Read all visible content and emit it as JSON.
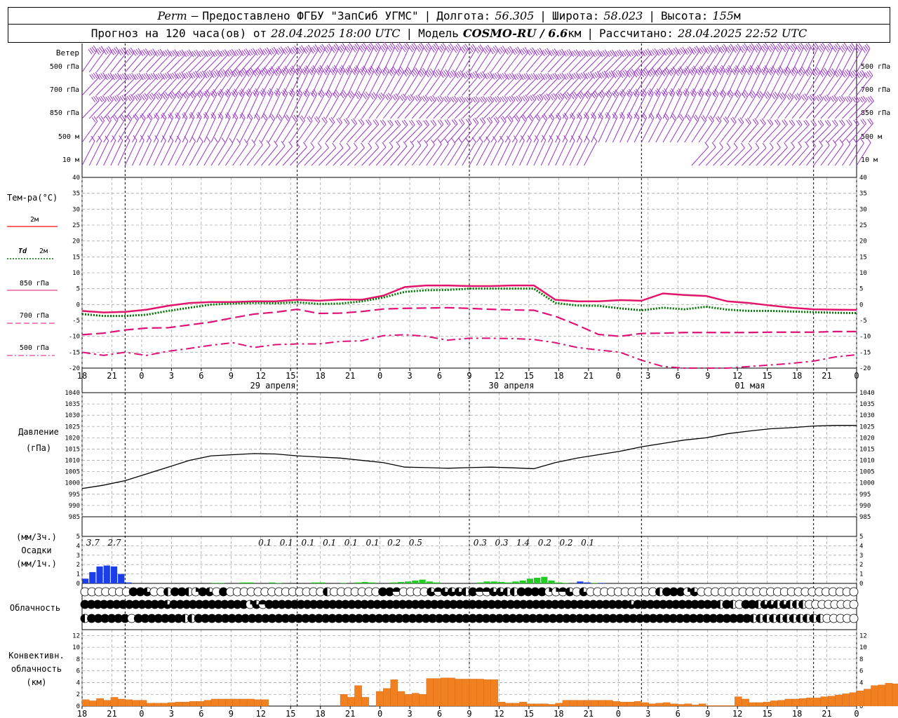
{
  "header": {
    "line1": {
      "station": "Perm",
      "provider": "Предоставлено ФГБУ \"ЗапСиб УГМС\"",
      "lon_label": "Долгота:",
      "lon": "56.305",
      "lat_label": "Широта:",
      "lat": "58.023",
      "alt_label": "Высота:",
      "alt": "155",
      "alt_unit": "м"
    },
    "line2": {
      "forecast_label": "Прогноз на 120 часа(ов) от",
      "forecast_from": "28.04.2025 18:00 UTC",
      "model_label": "Модель",
      "model": "COSMO-RU / 6.6",
      "model_unit": "км",
      "calc_label": "Рассчитано:",
      "calc": "28.04.2025 22:52 UTC"
    }
  },
  "time_axis": {
    "hour_labels": [
      "18",
      "21",
      "0",
      "3",
      "6",
      "9",
      "12",
      "15",
      "18",
      "21",
      "0",
      "3",
      "6",
      "9",
      "12",
      "15",
      "18",
      "21",
      "0",
      "3",
      "6",
      "9",
      "12",
      "15",
      "18",
      "21",
      "0"
    ],
    "day_labels": [
      "29 апреля",
      "30 апреля",
      "01 мая"
    ],
    "day_label_hours": [
      18,
      42,
      66
    ]
  },
  "colors": {
    "wind": "#9933cc",
    "t2m": "#ff3333",
    "td2m": "#007700",
    "t850": "#dd1177",
    "t700": "#dd1177",
    "t500": "#dd1177",
    "pressure": "#000000",
    "precip_rain": "#1a3ee8",
    "precip_light": "#22cc22",
    "convective": "#f08020",
    "grid": "#aaaaaa"
  },
  "wind_panel": {
    "title": "Ветер",
    "levels": [
      "500 гПа",
      "700 гПа",
      "850 гПа",
      "500  м",
      "10  м"
    ]
  },
  "temp_legend": {
    "title": "Тем-ра(°C)",
    "items": [
      {
        "label": "2м",
        "style": "solid"
      },
      {
        "label_td": "Td",
        "label": "2м",
        "style": "dotted"
      },
      {
        "label": "850 гПа",
        "style": "solid-thin"
      },
      {
        "label": "700 гПа",
        "style": "dashed"
      },
      {
        "label": "500 гПа",
        "style": "dashdot"
      }
    ]
  },
  "pressure_panel": {
    "title1": "Давление",
    "title2": "(гПа)"
  },
  "precip_panel": {
    "title1": "(мм/3ч.)",
    "title2": "Осадки",
    "title3": "(мм/1ч.)"
  },
  "cloud_panel": {
    "title": "Облачность"
  },
  "conv_panel": {
    "title1": "Конвективн.",
    "title2": "облачность",
    "title3": "(км)"
  },
  "chart_data": [
    {
      "type": "line",
      "name": "temperature",
      "ylim": [
        -20,
        40
      ],
      "y_ticks": [
        -20,
        -15,
        -10,
        -5,
        0,
        5,
        10,
        15,
        20,
        25,
        30,
        35,
        40
      ],
      "x_hours": [
        0,
        3,
        6,
        9,
        12,
        15,
        18,
        21,
        24,
        27,
        30,
        33,
        36,
        39,
        42,
        45,
        48,
        51,
        54,
        57,
        60,
        63,
        66,
        69,
        72,
        75,
        78,
        81,
        84,
        87,
        90,
        93,
        96,
        99,
        102,
        105,
        108
      ],
      "series": [
        {
          "key": "t2m",
          "values": [
            -2,
            -2.5,
            -2.3,
            -1.6,
            -0.4,
            0.5,
            0.8,
            0.8,
            1,
            1,
            1.5,
            1.2,
            1.6,
            1.5,
            2.8,
            5.5,
            6,
            6,
            5.8,
            5.8,
            6,
            6,
            1.5,
            1,
            1,
            1.4,
            1.2,
            3.5,
            3,
            2.7,
            1,
            0.5,
            -0.3,
            -1,
            -1.5,
            -1.6,
            -1.7
          ]
        },
        {
          "key": "td2m",
          "values": [
            -3,
            -3.6,
            -3.6,
            -3.2,
            -2,
            -1,
            0,
            0.3,
            0.5,
            0.4,
            0.7,
            0.2,
            0.3,
            1,
            2.2,
            4,
            4.5,
            4.6,
            5,
            5,
            5,
            5,
            0.5,
            -0.3,
            -0.4,
            -1.2,
            -1.8,
            -1,
            -1.5,
            -0.7,
            -1.6,
            -2,
            -2,
            -2.2,
            -2.4,
            -2.6,
            -2.7
          ]
        },
        {
          "key": "t850",
          "values": [
            -2,
            -2.5,
            -2.3,
            -1.6,
            -0.4,
            0.5,
            0.8,
            0.8,
            1,
            1,
            1.5,
            1.2,
            1.6,
            1.5,
            2.8,
            5.5,
            6,
            6,
            5.8,
            5.8,
            6,
            6,
            1.5,
            1,
            1,
            1.4,
            1.2,
            3.5,
            3,
            2.7,
            1,
            0.5,
            -0.3,
            -1,
            -1.5,
            -1.6,
            -1.7
          ]
        },
        {
          "key": "t700",
          "values": [
            -9.5,
            -9,
            -8,
            -7.4,
            -7.3,
            -6.4,
            -5.5,
            -4.2,
            -3,
            -2.4,
            -1.5,
            -2.8,
            -2.7,
            -2.2,
            -1.4,
            -1.2,
            -1.1,
            -1,
            -1.2,
            -1.5,
            -1.7,
            -1.8,
            -3.7,
            -6.4,
            -9.4,
            -10,
            -9.1,
            -9,
            -8.8,
            -8.8,
            -8.8,
            -8.8,
            -8.7,
            -8.7,
            -8.7,
            -8.5,
            -8.5
          ]
        },
        {
          "key": "t500",
          "values": [
            -15,
            -16,
            -15,
            -16,
            -14.7,
            -13.8,
            -12.8,
            -12,
            -13.5,
            -12.6,
            -12.4,
            -12.4,
            -11.6,
            -11.4,
            -9.8,
            -9.5,
            -10,
            -11.2,
            -10.6,
            -10.6,
            -10.7,
            -11,
            -12,
            -13.5,
            -14.3,
            -15,
            -17.5,
            -19.5,
            -20,
            -20,
            -20,
            -19.5,
            -19,
            -18.5,
            -17.8,
            -16.5,
            -15.8
          ]
        }
      ]
    },
    {
      "type": "line",
      "name": "pressure",
      "ylim": [
        985,
        1040
      ],
      "y_ticks": [
        985,
        990,
        995,
        1000,
        1005,
        1010,
        1015,
        1020,
        1025,
        1030,
        1035,
        1040
      ],
      "x_hours": [
        0,
        3,
        6,
        9,
        12,
        15,
        18,
        21,
        24,
        27,
        30,
        33,
        36,
        39,
        42,
        45,
        48,
        51,
        54,
        57,
        60,
        63,
        66,
        69,
        72,
        75,
        78,
        81,
        84,
        87,
        90,
        93,
        96,
        99,
        102,
        105,
        108
      ],
      "values": [
        997.5,
        999,
        1001,
        1004,
        1007,
        1010,
        1012,
        1012.5,
        1013,
        1012.8,
        1012,
        1011.5,
        1011,
        1010,
        1009,
        1007,
        1006.8,
        1006.5,
        1006.8,
        1007,
        1006.7,
        1006.3,
        1009,
        1011,
        1012.5,
        1014,
        1016,
        1017.5,
        1019,
        1020,
        1021.8,
        1023,
        1024,
        1024.5,
        1025.2,
        1025.5,
        1025.5
      ]
    },
    {
      "type": "bar",
      "name": "precipitation",
      "ylim": [
        0,
        5
      ],
      "y_ticks": [
        0,
        1,
        2,
        3,
        4,
        5
      ],
      "totals_3h": [
        {
          "label": "3.7",
          "hour": 1.5
        },
        {
          "label": "2.7",
          "hour": 4.5
        },
        {
          "label": "0.1",
          "hour": 25.5
        },
        {
          "label": "0.1",
          "hour": 28.5
        },
        {
          "label": "0.1",
          "hour": 31.5
        },
        {
          "label": "0.1",
          "hour": 34.5
        },
        {
          "label": "0.1",
          "hour": 37.5
        },
        {
          "label": "0.1",
          "hour": 40.5
        },
        {
          "label": "0.2",
          "hour": 43.5
        },
        {
          "label": "0.5",
          "hour": 46.5
        },
        {
          "label": "0.3",
          "hour": 55.5
        },
        {
          "label": "0.3",
          "hour": 58.5
        },
        {
          "label": "1.4",
          "hour": 61.5
        },
        {
          "label": "0.2",
          "hour": 64.5
        },
        {
          "label": "0.2",
          "hour": 67.5
        },
        {
          "label": "0.1",
          "hour": 70.5
        }
      ],
      "hourly_rain": [
        0.5,
        1.2,
        1.8,
        1.9,
        1.8,
        1,
        0.1
      ],
      "hourly_light": [
        {
          "hour": 18,
          "v": 0.05
        },
        {
          "hour": 19,
          "v": 0.05
        },
        {
          "hour": 22,
          "v": 0.1
        },
        {
          "hour": 23,
          "v": 0.1
        },
        {
          "hour": 26,
          "v": 0.1
        },
        {
          "hour": 27,
          "v": 0.05
        },
        {
          "hour": 32,
          "v": 0.1
        },
        {
          "hour": 33,
          "v": 0.1
        },
        {
          "hour": 36,
          "v": 0.05
        },
        {
          "hour": 38,
          "v": 0.1
        },
        {
          "hour": 39,
          "v": 0.15
        },
        {
          "hour": 40,
          "v": 0.1
        },
        {
          "hour": 43,
          "v": 0.1
        },
        {
          "hour": 44,
          "v": 0.15
        },
        {
          "hour": 45,
          "v": 0.2
        },
        {
          "hour": 46,
          "v": 0.3
        },
        {
          "hour": 47,
          "v": 0.4
        },
        {
          "hour": 48,
          "v": 0.2
        },
        {
          "hour": 49,
          "v": 0.1
        },
        {
          "hour": 55,
          "v": 0.1
        },
        {
          "hour": 56,
          "v": 0.2
        },
        {
          "hour": 57,
          "v": 0.2
        },
        {
          "hour": 58,
          "v": 0.15
        },
        {
          "hour": 59,
          "v": 0.1
        },
        {
          "hour": 60,
          "v": 0.2
        },
        {
          "hour": 61,
          "v": 0.3
        },
        {
          "hour": 62,
          "v": 0.5
        },
        {
          "hour": 63,
          "v": 0.6
        },
        {
          "hour": 64,
          "v": 0.7
        },
        {
          "hour": 65,
          "v": 0.3
        },
        {
          "hour": 66,
          "v": 0.1
        },
        {
          "hour": 67,
          "v": 0.05
        },
        {
          "hour": 71,
          "v": 0.05
        }
      ],
      "hourly_rain_late": [
        {
          "hour": 69,
          "v": 0.2
        },
        {
          "hour": 70,
          "v": 0.1
        },
        {
          "hour": 72,
          "v": 0.05
        }
      ]
    },
    {
      "type": "table",
      "name": "cloudiness",
      "rows": [
        "0000000AAB001AA1EAB0A0000000000000010000000AAD0000BDBBB1ADDBB11AAAAEEDB0B00000000001AAAEB00000000000000000000000",
        "AAAAAAAAAAAAABAAAAAAAAAAAACBDAAAAAAAAAAAAAAAAAAAAAAAAAAAAAAAAAAAAAAAAAAAAAAAAAAAAAAAAABAAAAAAAAAAAAA1A10AA1BB1B11100000000",
        "2AAAAAA0AAAAAAA11AAAAAAAAAAAAAAAAAAAAAAAAAAAAAAAAAAAAAAAAAAAAAAAAAAAAAAAAAAAAAAAAAAAAAAAAAAAAAAAAAAA1111111111100000"
      ],
      "legend": {
        "0": "clear",
        "1": "half-left",
        "2": "half-left",
        "A": "full",
        "B": "three-quarter",
        "C": "quarter",
        "D": "half-top",
        "E": "quarter-2"
      }
    },
    {
      "type": "bar",
      "name": "convective_cloud",
      "ylim": [
        0,
        13
      ],
      "y_ticks": [
        0,
        2,
        4,
        6,
        8,
        10,
        12
      ],
      "x_hours_start": 0,
      "hourly": [
        1.1,
        0.9,
        1.3,
        1.0,
        1.5,
        1.2,
        1.1,
        1.0,
        1.0,
        0.5,
        0.5,
        0.5,
        0.6,
        0.7,
        0.7,
        0.8,
        0.8,
        1.0,
        1.2,
        1.2,
        1.2,
        1.2,
        1.2,
        1.2,
        1.1,
        1.1,
        0,
        0,
        0,
        0,
        0,
        0,
        0,
        0,
        0,
        0,
        2.0,
        1.5,
        3.5,
        1.5,
        0,
        2.5,
        3.0,
        4.5,
        2.5,
        2.0,
        2.2,
        2.0,
        4.7,
        4.7,
        4.8,
        4.8,
        4.6,
        4.6,
        4.6,
        4.6,
        4.5,
        4.5,
        0.7,
        0.5,
        0.5,
        0.7,
        0.4,
        0.4,
        0.4,
        0.3,
        0.5,
        1.0,
        1.0,
        1.0,
        1.0,
        1.0,
        1.0,
        1.0,
        0.8,
        0.7,
        0.7,
        0.8,
        0.6,
        0.4,
        0.5,
        0.6,
        0.4,
        0.3,
        0.4,
        0.2,
        0.4,
        0.1,
        0.1,
        0.1,
        0.1,
        1.6,
        1.2,
        0.6,
        0.6,
        0.7,
        0.9,
        1.0,
        1.2,
        1.2,
        1.3,
        1.4,
        1.4,
        1.6,
        1.7,
        1.9,
        2.1,
        2.3,
        2.6,
        2.9,
        3.5,
        3.6,
        3.9,
        3.8
      ]
    }
  ]
}
